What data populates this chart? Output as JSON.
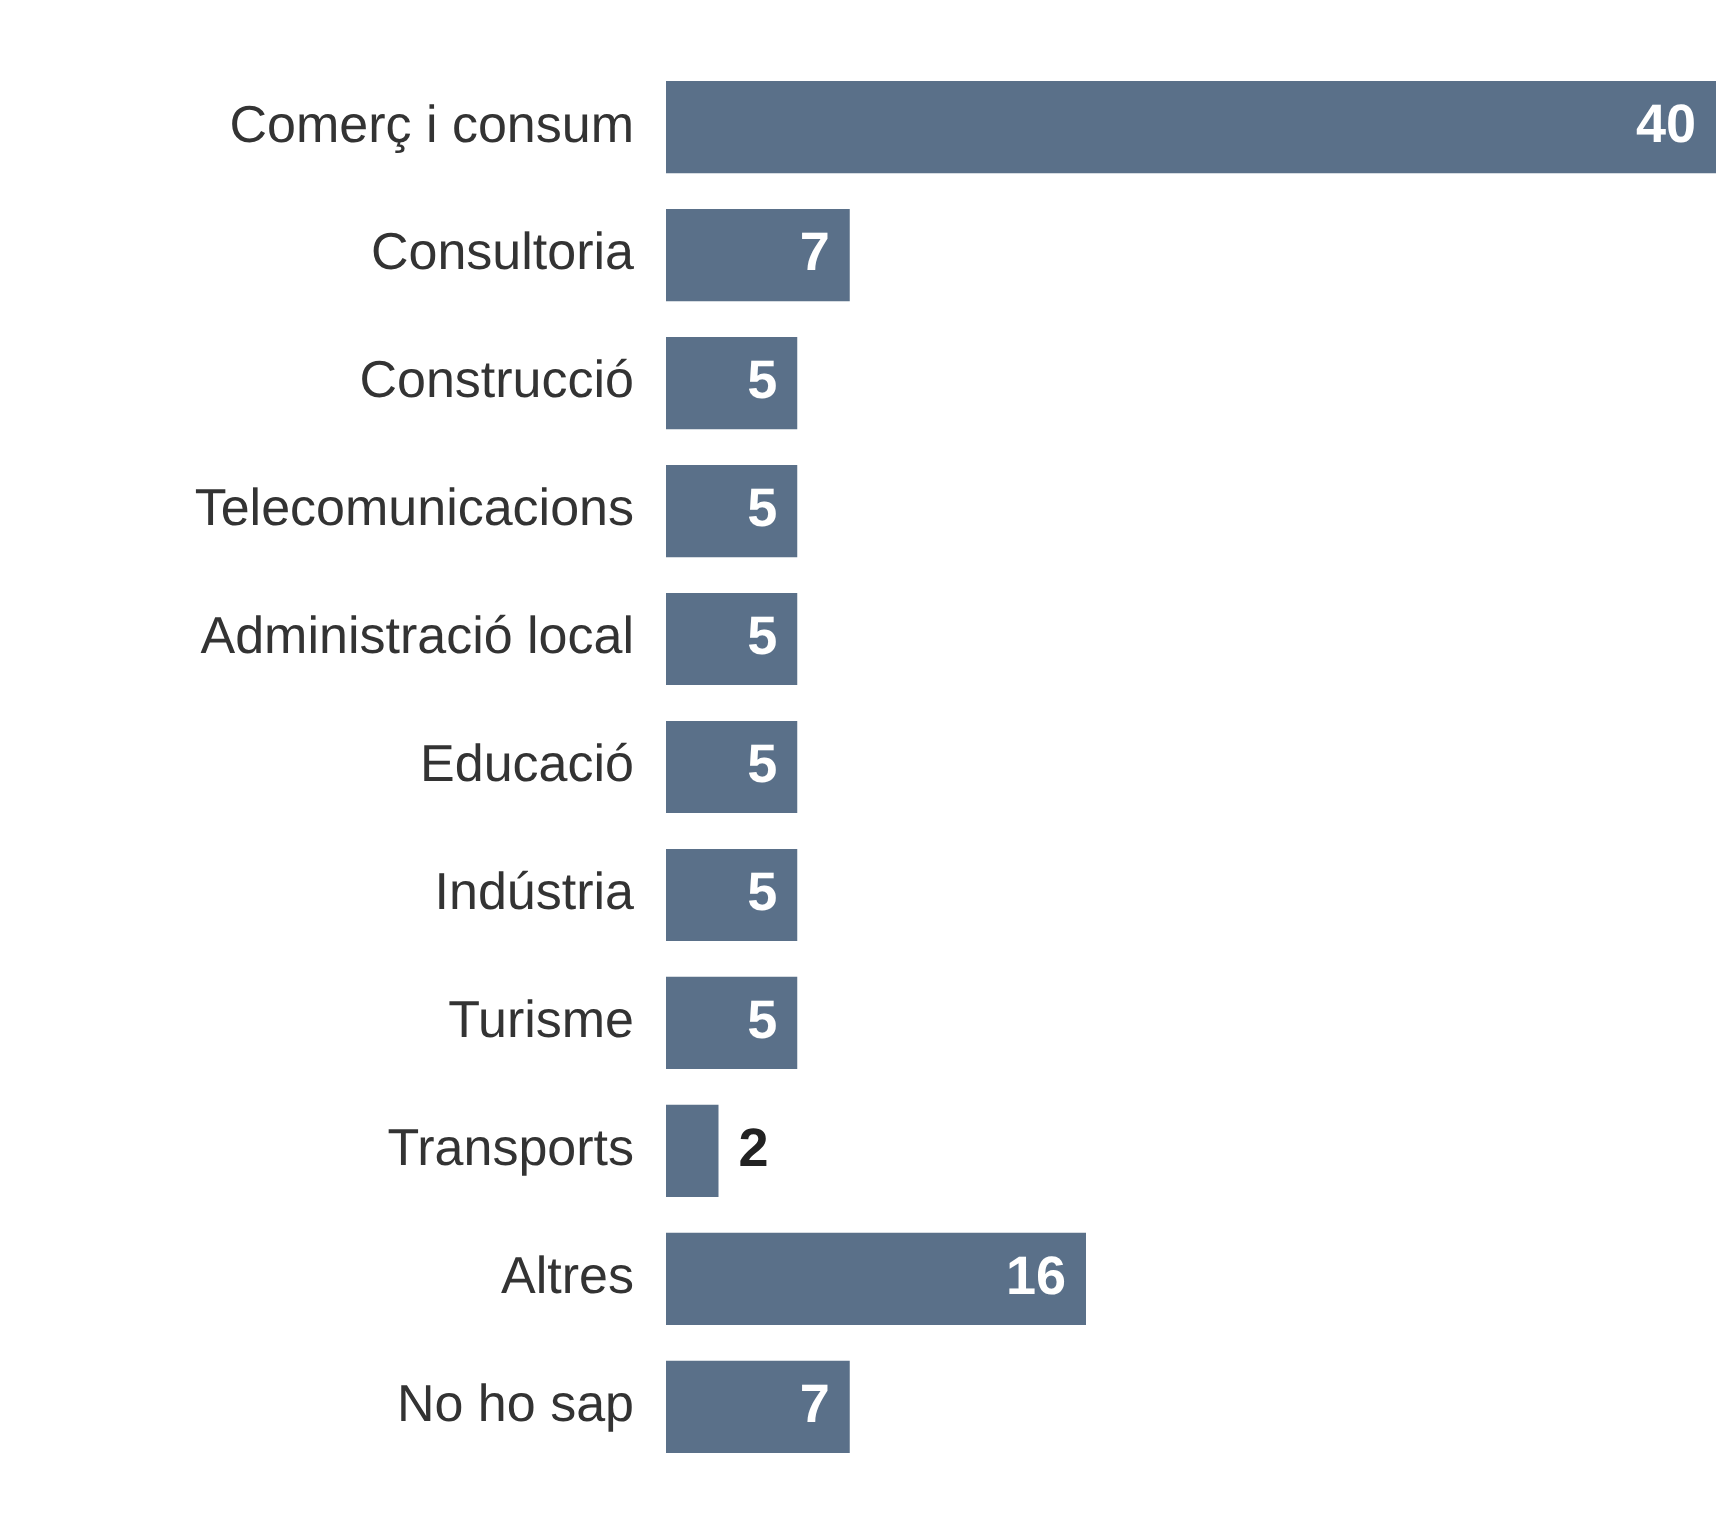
{
  "chart_data": {
    "type": "bar",
    "orientation": "horizontal",
    "categories": [
      "Comerç i consum",
      "Consultoria",
      "Construcció",
      "Telecomunicacions",
      "Administració local",
      "Educació",
      "Indústria",
      "Turisme",
      "Transports",
      "Altres",
      "No ho sap"
    ],
    "values": [
      40,
      7,
      5,
      5,
      5,
      5,
      5,
      5,
      2,
      16,
      7
    ],
    "color": "#5a7089",
    "xlim": [
      0,
      40
    ],
    "data_labels": true,
    "legend": false,
    "tick_labels": "y"
  }
}
